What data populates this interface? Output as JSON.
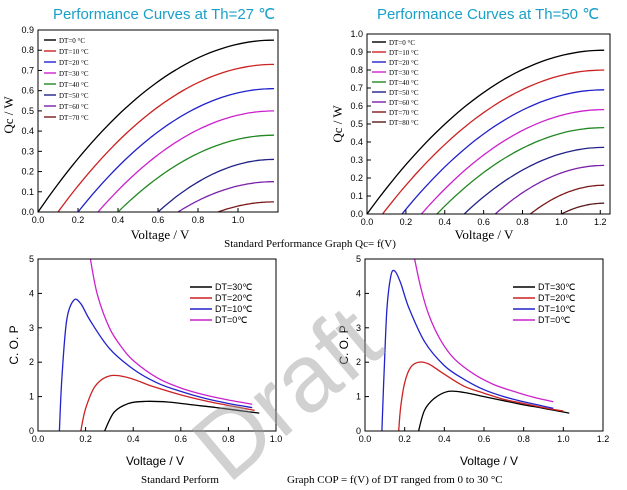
{
  "captions": {
    "top": "Standard Performance Graph Qc= f(V)",
    "bottom_left": "Standard Perform",
    "bottom_right": "Graph COP = f(V) of DT ranged from 0 to 30 °C"
  },
  "watermark": "Draft",
  "colors": {
    "title": "#1aa0c8",
    "black": "#000000",
    "red": "#cc2222",
    "blue": "#2222cc",
    "magenta": "#cc22cc",
    "green": "#228822",
    "navy": "#222288",
    "purple": "#7a22aa",
    "darkred": "#7a1a1a"
  },
  "chart_data": [
    {
      "id": "qc27",
      "type": "line",
      "title": "Performance Curves at Th=27 ℃",
      "xlabel": "Voltage / V",
      "ylabel": "Qc / W",
      "xlim": [
        0,
        1.2
      ],
      "ylim": [
        0,
        0.9
      ],
      "xticks": [
        0.0,
        0.2,
        0.4,
        0.6,
        0.8,
        1.0
      ],
      "yticks": [
        0.0,
        0.1,
        0.2,
        0.3,
        0.4,
        0.5,
        0.6,
        0.7,
        0.8,
        0.9
      ],
      "xtick_labels": [
        "0.0",
        "0.2",
        "0.4",
        "0.6",
        "0.8",
        "1.0"
      ],
      "ytick_labels": [
        "0.0",
        "0.1",
        "0.2",
        "0.3",
        "0.4",
        "0.5",
        "0.6",
        "0.7",
        "0.8",
        "0.9"
      ],
      "legend": "top-left",
      "series": [
        {
          "name": "DT=0 °C",
          "color": "#000000",
          "x": [
            0.0,
            1.18
          ],
          "y": [
            0.0,
            0.85
          ]
        },
        {
          "name": "DT=10 °C",
          "color": "#cc2222",
          "x": [
            0.1,
            1.18
          ],
          "y": [
            0.0,
            0.73
          ]
        },
        {
          "name": "DT=20 °C",
          "color": "#2222cc",
          "x": [
            0.2,
            1.18
          ],
          "y": [
            0.0,
            0.61
          ]
        },
        {
          "name": "DT=30 °C",
          "color": "#cc22cc",
          "x": [
            0.3,
            1.18
          ],
          "y": [
            0.0,
            0.5
          ]
        },
        {
          "name": "DT=40 °C",
          "color": "#228822",
          "x": [
            0.4,
            1.18
          ],
          "y": [
            0.0,
            0.38
          ]
        },
        {
          "name": "DT=50 °C",
          "color": "#222288",
          "x": [
            0.6,
            1.18
          ],
          "y": [
            0.0,
            0.26
          ]
        },
        {
          "name": "DT=60 °C",
          "color": "#7a22aa",
          "x": [
            0.7,
            1.18
          ],
          "y": [
            0.0,
            0.15
          ]
        },
        {
          "name": "DT=70 °C",
          "color": "#7a1a1a",
          "x": [
            0.9,
            1.18
          ],
          "y": [
            0.0,
            0.05
          ]
        }
      ]
    },
    {
      "id": "qc50",
      "type": "line",
      "title": "Performance Curves at Th=50 ℃",
      "xlabel": "Voltage / V",
      "ylabel": "Qc / W",
      "xlim": [
        0,
        1.25
      ],
      "ylim": [
        0,
        1.0
      ],
      "xticks": [
        0.0,
        0.2,
        0.4,
        0.6,
        0.8,
        1.0,
        1.2
      ],
      "yticks": [
        0.0,
        0.1,
        0.2,
        0.3,
        0.4,
        0.5,
        0.6,
        0.7,
        0.8,
        0.9,
        1.0
      ],
      "xtick_labels": [
        "0.0",
        "0.2",
        "0.4",
        "0.6",
        "0.8",
        "1.0",
        "1.2"
      ],
      "ytick_labels": [
        "0.0",
        "0.1",
        "0.2",
        "0.3",
        "0.4",
        "0.5",
        "0.6",
        "0.7",
        "0.8",
        "0.9",
        "1.0"
      ],
      "legend": "top-left",
      "series": [
        {
          "name": "DT=0 °C",
          "color": "#000000",
          "x": [
            0.0,
            1.22
          ],
          "y": [
            0.0,
            0.91
          ]
        },
        {
          "name": "DT=10 °C",
          "color": "#cc2222",
          "x": [
            0.08,
            1.22
          ],
          "y": [
            0.0,
            0.8
          ]
        },
        {
          "name": "DT=20 °C",
          "color": "#2222cc",
          "x": [
            0.18,
            1.22
          ],
          "y": [
            0.0,
            0.69
          ]
        },
        {
          "name": "DT=30 °C",
          "color": "#cc22cc",
          "x": [
            0.28,
            1.22
          ],
          "y": [
            0.0,
            0.58
          ]
        },
        {
          "name": "DT=40 °C",
          "color": "#228822",
          "x": [
            0.36,
            1.22
          ],
          "y": [
            0.0,
            0.48
          ]
        },
        {
          "name": "DT=50 °C",
          "color": "#222288",
          "x": [
            0.5,
            1.22
          ],
          "y": [
            0.0,
            0.37
          ]
        },
        {
          "name": "DT=60 °C",
          "color": "#7a22aa",
          "x": [
            0.66,
            1.22
          ],
          "y": [
            0.0,
            0.27
          ]
        },
        {
          "name": "DT=70 °C",
          "color": "#7a1a1a",
          "x": [
            0.84,
            1.22
          ],
          "y": [
            0.0,
            0.16
          ]
        },
        {
          "name": "DT=80 °C",
          "color": "#5a1a1a",
          "x": [
            1.0,
            1.22
          ],
          "y": [
            0.0,
            0.06
          ]
        }
      ]
    },
    {
      "id": "cop27",
      "type": "line",
      "title": "",
      "xlabel": "Voltage / V",
      "ylabel": "C. O. P",
      "xlim": [
        0,
        1.0
      ],
      "ylim": [
        0,
        5
      ],
      "xticks": [
        0.0,
        0.2,
        0.4,
        0.6,
        0.8,
        1.0
      ],
      "yticks": [
        0,
        1,
        2,
        3,
        4,
        5
      ],
      "xtick_labels": [
        "0.0",
        "0.2",
        "0.4",
        "0.6",
        "0.8",
        "1.0"
      ],
      "ytick_labels": [
        "0",
        "1",
        "2",
        "3",
        "4",
        "5"
      ],
      "legend": "top-right",
      "series": [
        {
          "name": "DT=30℃",
          "color": "#000000",
          "x": [
            0.28,
            0.32,
            0.38,
            0.45,
            0.55,
            0.65,
            0.75,
            0.85,
            0.93
          ],
          "y": [
            0.0,
            0.55,
            0.8,
            0.86,
            0.84,
            0.76,
            0.68,
            0.59,
            0.52
          ]
        },
        {
          "name": "DT=20℃",
          "color": "#cc2222",
          "x": [
            0.18,
            0.2,
            0.24,
            0.3,
            0.38,
            0.48,
            0.6,
            0.72,
            0.85,
            0.91
          ],
          "y": [
            0.0,
            0.65,
            1.3,
            1.6,
            1.55,
            1.3,
            1.05,
            0.85,
            0.68,
            0.6
          ]
        },
        {
          "name": "DT=10℃",
          "color": "#2222cc",
          "x": [
            0.09,
            0.1,
            0.12,
            0.15,
            0.18,
            0.22,
            0.3,
            0.4,
            0.5,
            0.6,
            0.7,
            0.8,
            0.9
          ],
          "y": [
            0.0,
            1.5,
            3.2,
            3.8,
            3.7,
            3.2,
            2.4,
            1.8,
            1.4,
            1.15,
            0.95,
            0.8,
            0.68
          ]
        },
        {
          "name": "DT=0℃",
          "color": "#cc22cc",
          "x": [
            0.22,
            0.25,
            0.3,
            0.35,
            0.4,
            0.5,
            0.6,
            0.7,
            0.8,
            0.9
          ],
          "y": [
            5.0,
            3.95,
            3.0,
            2.45,
            2.05,
            1.55,
            1.25,
            1.05,
            0.9,
            0.78
          ]
        }
      ]
    },
    {
      "id": "cop50",
      "type": "line",
      "title": "",
      "xlabel": "Voltage / V",
      "ylabel": "C. O. P",
      "xlim": [
        0,
        1.2
      ],
      "ylim": [
        0,
        5
      ],
      "xticks": [
        0.0,
        0.2,
        0.4,
        0.6,
        0.8,
        1.0,
        1.2
      ],
      "yticks": [
        0,
        1,
        2,
        3,
        4,
        5
      ],
      "xtick_labels": [
        "0.0",
        "0.2",
        "0.4",
        "0.6",
        "0.8",
        "1.0",
        "1.2"
      ],
      "ytick_labels": [
        "0",
        "1",
        "2",
        "3",
        "4",
        "5"
      ],
      "legend": "top-right",
      "series": [
        {
          "name": "DT=30℃",
          "color": "#000000",
          "x": [
            0.27,
            0.3,
            0.35,
            0.42,
            0.5,
            0.6,
            0.7,
            0.8,
            0.9,
            1.03
          ],
          "y": [
            0.0,
            0.6,
            0.95,
            1.15,
            1.12,
            1.0,
            0.88,
            0.76,
            0.66,
            0.52
          ]
        },
        {
          "name": "DT=20℃",
          "color": "#cc2222",
          "x": [
            0.17,
            0.18,
            0.2,
            0.23,
            0.27,
            0.32,
            0.4,
            0.5,
            0.6,
            0.7,
            0.8,
            0.9,
            1.0
          ],
          "y": [
            0.0,
            0.7,
            1.4,
            1.85,
            2.0,
            1.95,
            1.65,
            1.3,
            1.1,
            0.92,
            0.8,
            0.68,
            0.58
          ]
        },
        {
          "name": "DT=10℃",
          "color": "#2222cc",
          "x": [
            0.085,
            0.095,
            0.11,
            0.13,
            0.15,
            0.18,
            0.22,
            0.3,
            0.4,
            0.5,
            0.6,
            0.7,
            0.8,
            0.95
          ],
          "y": [
            0.0,
            1.5,
            3.5,
            4.5,
            4.65,
            4.3,
            3.6,
            2.6,
            1.9,
            1.5,
            1.2,
            1.0,
            0.85,
            0.66
          ]
        },
        {
          "name": "DT=0℃",
          "color": "#cc22cc",
          "x": [
            0.25,
            0.28,
            0.32,
            0.38,
            0.45,
            0.55,
            0.65,
            0.75,
            0.85,
            0.95
          ],
          "y": [
            5.0,
            4.2,
            3.4,
            2.65,
            2.1,
            1.65,
            1.35,
            1.15,
            0.98,
            0.85
          ]
        }
      ]
    }
  ]
}
